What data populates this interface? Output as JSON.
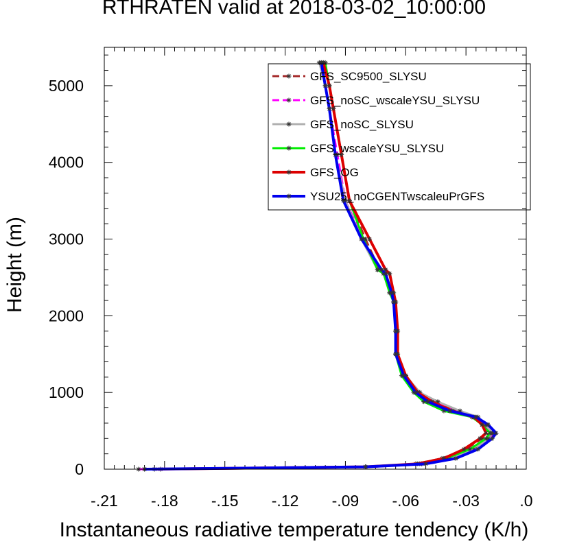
{
  "chart_data": {
    "type": "line",
    "title": "RTHRATEN valid at 2018-03-02_10:00:00",
    "xlabel": "Instantaneous radiative temperature tendency (K/h)",
    "ylabel": "Height (m)",
    "xlim": [
      -0.21,
      0.0
    ],
    "ylim": [
      0,
      5500
    ],
    "grid": false,
    "legend_position": "top-right",
    "x_ticks": [
      -0.21,
      -0.18,
      -0.15,
      -0.12,
      -0.09,
      -0.06,
      -0.03,
      0.0
    ],
    "x_tick_labels": [
      "-.21",
      "-.18",
      "-.15",
      "-.12",
      "-.09",
      "-.06",
      "-.03",
      ".0"
    ],
    "y_ticks": [
      0,
      1000,
      2000,
      3000,
      4000,
      5000
    ],
    "y_tick_labels": [
      "0",
      "1000",
      "2000",
      "3000",
      "4000",
      "5000"
    ],
    "series": [
      {
        "name": "GFS_SC9500_SLYSU",
        "color": "#a52a2a",
        "dash": "dashed",
        "x": [
          -0.182,
          -0.08,
          -0.055,
          -0.042,
          -0.03,
          -0.022,
          -0.018,
          -0.022,
          -0.026,
          -0.035,
          -0.045,
          -0.053,
          -0.06,
          -0.065,
          -0.065,
          -0.066,
          -0.067,
          -0.07,
          -0.073,
          -0.08,
          -0.088,
          -0.092,
          -0.096,
          -0.098,
          -0.101
        ],
        "y": [
          0,
          30,
          70,
          140,
          260,
          400,
          470,
          580,
          680,
          760,
          880,
          1000,
          1220,
          1500,
          1800,
          2180,
          2300,
          2550,
          2600,
          3000,
          3500,
          4100,
          4700,
          5000,
          5300
        ]
      },
      {
        "name": "GFS_noSC_wscaleYSU_SLYSU",
        "color": "#ff00ff",
        "dash": "dashed",
        "x": [
          -0.193,
          -0.08,
          -0.052,
          -0.038,
          -0.026,
          -0.019,
          -0.016,
          -0.021,
          -0.026,
          -0.036,
          -0.046,
          -0.054,
          -0.06,
          -0.064,
          -0.064,
          -0.065,
          -0.067,
          -0.07,
          -0.074,
          -0.081,
          -0.09,
          -0.094,
          -0.098,
          -0.1,
          -0.102
        ],
        "y": [
          0,
          30,
          70,
          140,
          260,
          400,
          470,
          580,
          680,
          760,
          880,
          1000,
          1220,
          1500,
          1800,
          2180,
          2300,
          2550,
          2600,
          3000,
          3500,
          4100,
          4700,
          5000,
          5300
        ]
      },
      {
        "name": "GFS_noSC_SLYSU",
        "color": "#b0b0b0",
        "dash": "solid",
        "x": [
          -0.19,
          -0.08,
          -0.052,
          -0.038,
          -0.026,
          -0.019,
          -0.017,
          -0.02,
          -0.024,
          -0.033,
          -0.044,
          -0.053,
          -0.06,
          -0.065,
          -0.065,
          -0.066,
          -0.068,
          -0.071,
          -0.074,
          -0.082,
          -0.09,
          -0.095,
          -0.098,
          -0.1,
          -0.103
        ],
        "y": [
          0,
          30,
          70,
          140,
          260,
          400,
          470,
          580,
          680,
          760,
          880,
          1000,
          1220,
          1500,
          1800,
          2180,
          2300,
          2550,
          2600,
          3000,
          3500,
          4100,
          4700,
          5000,
          5300
        ]
      },
      {
        "name": "GFS_wscaleYSU_SLYSU",
        "color": "#00ee00",
        "dash": "solid",
        "x": [
          -0.19,
          -0.08,
          -0.053,
          -0.04,
          -0.028,
          -0.02,
          -0.018,
          -0.022,
          -0.027,
          -0.041,
          -0.051,
          -0.056,
          -0.062,
          -0.065,
          -0.065,
          -0.066,
          -0.068,
          -0.071,
          -0.074,
          -0.081,
          -0.088,
          -0.092,
          -0.096,
          -0.098,
          -0.1
        ],
        "y": [
          0,
          30,
          70,
          140,
          260,
          400,
          470,
          580,
          680,
          760,
          880,
          1000,
          1220,
          1500,
          1800,
          2180,
          2300,
          2550,
          2600,
          3000,
          3500,
          4100,
          4700,
          5000,
          5300
        ]
      },
      {
        "name": "GFS_OG",
        "color": "#dd0000",
        "dash": "solid",
        "x": [
          -0.185,
          -0.08,
          -0.054,
          -0.041,
          -0.031,
          -0.023,
          -0.02,
          -0.022,
          -0.026,
          -0.037,
          -0.047,
          -0.054,
          -0.06,
          -0.064,
          -0.064,
          -0.065,
          -0.066,
          -0.068,
          -0.07,
          -0.078,
          -0.088,
          -0.092,
          -0.096,
          -0.098,
          -0.101
        ],
        "y": [
          0,
          30,
          70,
          140,
          260,
          400,
          470,
          580,
          680,
          760,
          880,
          1000,
          1220,
          1500,
          1800,
          2180,
          2300,
          2550,
          2600,
          3000,
          3500,
          4100,
          4700,
          5000,
          5300
        ]
      },
      {
        "name": "YSU25_noCGENTwscaleuPrGFS",
        "color": "#0000ee",
        "dash": "solid",
        "x": [
          -0.19,
          -0.08,
          -0.05,
          -0.035,
          -0.024,
          -0.017,
          -0.015,
          -0.019,
          -0.025,
          -0.038,
          -0.049,
          -0.055,
          -0.061,
          -0.065,
          -0.065,
          -0.066,
          -0.067,
          -0.07,
          -0.072,
          -0.082,
          -0.091,
          -0.095,
          -0.098,
          -0.1,
          -0.102
        ],
        "y": [
          0,
          30,
          70,
          140,
          260,
          400,
          470,
          580,
          680,
          760,
          880,
          1000,
          1220,
          1500,
          1800,
          2180,
          2300,
          2550,
          2600,
          3000,
          3500,
          4100,
          4700,
          5000,
          5300
        ]
      }
    ]
  }
}
